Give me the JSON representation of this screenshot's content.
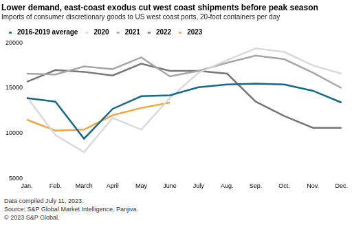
{
  "chart_data": {
    "type": "line",
    "title": "Lower demand, east-coast exodus cut west coast shipments before peak season",
    "subtitle": "Imports of consumer discretionary goods to US west coast ports, 20-foot containers per day",
    "categories": [
      "Jan.",
      "Feb.",
      "March",
      "April",
      "May",
      "June",
      "July",
      "Aug.",
      "Sep.",
      "Oct.",
      "Nov.",
      "Dec."
    ],
    "series": [
      {
        "name": "2016-2019 average",
        "color": "#17698a",
        "values": [
          13900,
          13500,
          9400,
          12700,
          14100,
          14200,
          15100,
          15400,
          15500,
          15400,
          14700,
          13400
        ]
      },
      {
        "name": "2020",
        "color": "#d9d9d9",
        "values": [
          14000,
          9800,
          7900,
          11700,
          10400,
          13900,
          16700,
          18100,
          19400,
          19000,
          17500,
          16600
        ]
      },
      {
        "name": "2021",
        "color": "#a6a6a6",
        "values": [
          16600,
          16500,
          17400,
          17100,
          18400,
          16300,
          16900,
          17800,
          18600,
          18200,
          16700,
          15000
        ]
      },
      {
        "name": "2022",
        "color": "#767676",
        "values": [
          15700,
          17000,
          16800,
          16400,
          17700,
          16900,
          16900,
          16600,
          13500,
          11900,
          10600,
          10600
        ]
      },
      {
        "name": "2023",
        "color": "#f5a33b",
        "values": [
          11500,
          10300,
          10400,
          12000,
          12800,
          13400,
          null,
          null,
          null,
          null,
          null,
          null
        ]
      }
    ],
    "ylim": [
      5000,
      20000
    ],
    "yticks": [
      5000,
      10000,
      15000,
      20000
    ],
    "grid": false,
    "legend": "top",
    "annotations": [
      "Data compiled July 11, 2023.",
      "Source: S&P Global Market Intelligence, Panjiva.",
      "© 2023 S&P Global."
    ]
  }
}
